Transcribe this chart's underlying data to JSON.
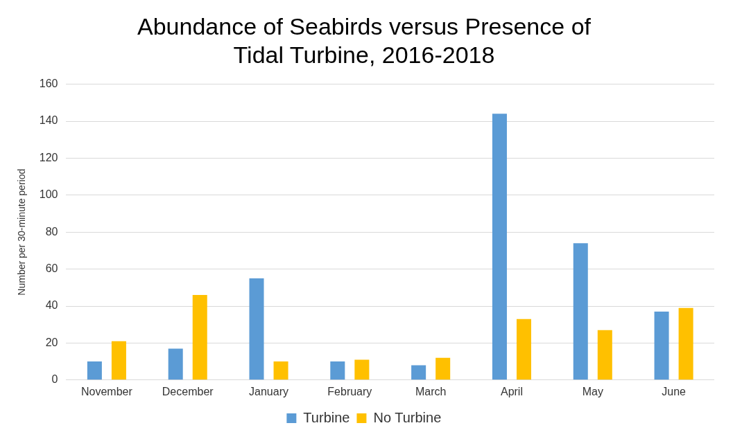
{
  "chart_data": {
    "type": "bar",
    "title": [
      "Abundance of Seabirds versus Presence of",
      "Tidal Turbine, 2016-2018"
    ],
    "ylabel": "Number per 30-minute period",
    "categories": [
      "November",
      "December",
      "January",
      "February",
      "March",
      "April",
      "May",
      "June"
    ],
    "series": [
      {
        "name": "Turbine",
        "color": "#5b9bd5",
        "values": [
          10,
          17,
          55,
          10,
          8,
          144,
          74,
          37
        ]
      },
      {
        "name": "No Turbine",
        "color": "#ffc000",
        "values": [
          21,
          46,
          10,
          11,
          12,
          33,
          27,
          39
        ]
      }
    ],
    "ylim": [
      0,
      160
    ],
    "yticks": [
      0,
      20,
      40,
      60,
      80,
      100,
      120,
      140,
      160
    ],
    "grid": "y",
    "legend": "bottom"
  }
}
